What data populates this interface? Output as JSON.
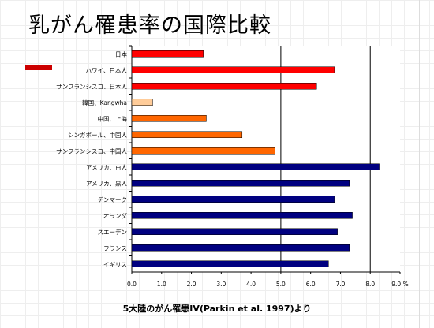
{
  "slide": {
    "title": "乳がん罹患率の国際比較",
    "caption": "5大陸のがん罹患IV(Parkin et al. 1997)より"
  },
  "chart_data": {
    "type": "bar",
    "orientation": "horizontal",
    "categories": [
      "日本",
      "ハワイ、日本人",
      "サンフランシスコ、日本人",
      "韓国、Kangwha",
      "中国、上海",
      "シンガポール、中国人",
      "サンフランシスコ、中国人",
      "アメリカ、白人",
      "アメリカ、黒人",
      "デンマーク",
      "オランダ",
      "スエーデン",
      "フランス",
      "イギリス"
    ],
    "values": [
      2.4,
      6.8,
      6.2,
      0.7,
      2.5,
      3.7,
      4.8,
      8.3,
      7.3,
      6.8,
      7.4,
      6.9,
      7.3,
      6.6
    ],
    "colors": [
      "#ff0000",
      "#ff0000",
      "#ff0000",
      "#ffcc99",
      "#ff6600",
      "#ff6600",
      "#ff6600",
      "#000080",
      "#000080",
      "#000080",
      "#000080",
      "#000080",
      "#000080",
      "#000080"
    ],
    "xlim": [
      0,
      9
    ],
    "xticks": [
      0.0,
      1.0,
      2.0,
      3.0,
      4.0,
      5.0,
      6.0,
      7.0,
      8.0,
      9.0
    ],
    "xtick_labels": [
      "0.0",
      "1.0",
      "2.0",
      "3.0",
      "4.0",
      "5.0",
      "6.0",
      "7.0",
      "8.0",
      "9.0 %"
    ],
    "major_gridlines_at": [
      5.0,
      8.0
    ],
    "title": "",
    "xlabel": "",
    "ylabel": ""
  }
}
